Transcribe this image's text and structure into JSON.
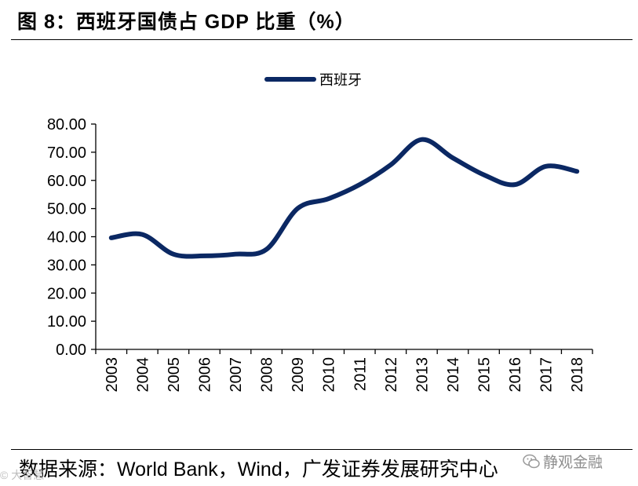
{
  "header": {
    "title": "图 8：西班牙国债占 GDP 比重（%）"
  },
  "chart_data": {
    "type": "line",
    "title": "",
    "xlabel": "",
    "ylabel": "",
    "x": [
      "2003",
      "2004",
      "2005",
      "2006",
      "2007",
      "2008",
      "2009",
      "2010",
      "2011",
      "2012",
      "2013",
      "2014",
      "2015",
      "2016",
      "2017",
      "2018"
    ],
    "series": [
      {
        "name": "西班牙",
        "color": "#0b2863",
        "values": [
          39.6,
          40.8,
          33.8,
          33.2,
          33.8,
          35.5,
          50.0,
          53.5,
          58.5,
          65.5,
          74.5,
          68.0,
          62.0,
          58.5,
          65.0,
          63.2
        ]
      }
    ],
    "ylim": [
      0,
      80
    ],
    "yticks": [
      "0.00",
      "10.00",
      "20.00",
      "30.00",
      "40.00",
      "50.00",
      "60.00",
      "70.00",
      "80.00"
    ],
    "legend_position": "top-center",
    "grid": false
  },
  "footer": {
    "source": "数据来源：World Bank，Wind，广发证券发展研究中心"
  },
  "watermark": {
    "text": "静观金融",
    "icon": "wechat-icon",
    "left_text": "© 大智慧"
  }
}
